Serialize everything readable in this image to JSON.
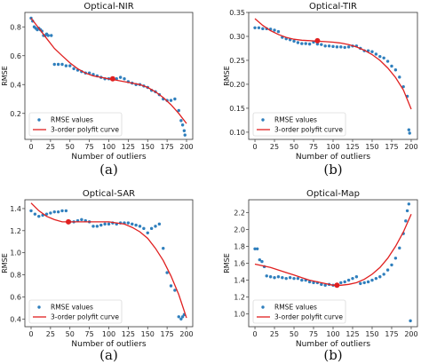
{
  "chart_data": [
    {
      "type": "scatter",
      "title": "Optical-NIR",
      "xlabel": "Number of outliers",
      "ylabel": "RMSE",
      "caption": "(a)",
      "xlim": [
        -8,
        208
      ],
      "ylim": [
        0.02,
        0.9
      ],
      "xticks": [
        0,
        25,
        50,
        75,
        100,
        125,
        150,
        175,
        200
      ],
      "yticks": [
        0.2,
        0.4,
        0.6,
        0.8
      ],
      "ytick_labels": [
        "0.2",
        "0.4",
        "0.6",
        "0.8"
      ],
      "legend": {
        "placement": "lower-left",
        "entries": [
          "RMSE values",
          "3-order polyfit curve"
        ]
      },
      "colors": {
        "points": "#2f7fbd",
        "curve": "#e02020",
        "marker": "#e02020"
      },
      "series": [
        {
          "name": "RMSE values",
          "kind": "scatter",
          "x": [
            0,
            2,
            4,
            6,
            8,
            10,
            12,
            14,
            16,
            18,
            20,
            22,
            26,
            30,
            35,
            40,
            45,
            50,
            55,
            60,
            65,
            70,
            75,
            80,
            85,
            90,
            95,
            100,
            105,
            110,
            115,
            120,
            125,
            130,
            135,
            140,
            145,
            150,
            155,
            160,
            165,
            170,
            175,
            180,
            185,
            190,
            193,
            195,
            197,
            198
          ],
          "y": [
            0.86,
            0.84,
            0.8,
            0.79,
            0.78,
            0.79,
            0.78,
            0.77,
            0.74,
            0.74,
            0.75,
            0.74,
            0.74,
            0.54,
            0.54,
            0.54,
            0.53,
            0.53,
            0.51,
            0.5,
            0.49,
            0.48,
            0.48,
            0.47,
            0.46,
            0.45,
            0.44,
            0.44,
            0.44,
            0.44,
            0.45,
            0.44,
            0.42,
            0.41,
            0.4,
            0.4,
            0.39,
            0.38,
            0.36,
            0.35,
            0.33,
            0.3,
            0.29,
            0.29,
            0.3,
            0.22,
            0.15,
            0.12,
            0.08,
            0.05
          ]
        },
        {
          "name": "3-order polyfit curve",
          "kind": "line",
          "x": [
            0,
            10,
            20,
            30,
            40,
            50,
            60,
            70,
            80,
            90,
            100,
            110,
            120,
            130,
            140,
            150,
            160,
            170,
            180,
            190,
            200
          ],
          "y": [
            0.86,
            0.79,
            0.72,
            0.65,
            0.6,
            0.55,
            0.51,
            0.48,
            0.46,
            0.45,
            0.44,
            0.43,
            0.42,
            0.41,
            0.4,
            0.38,
            0.35,
            0.31,
            0.26,
            0.2,
            0.13
          ]
        }
      ],
      "highlight": {
        "x": 105,
        "y": 0.44
      }
    },
    {
      "type": "scatter",
      "title": "Optical-TIR",
      "xlabel": "Number of outliers",
      "ylabel": "RMSE",
      "caption": "(b)",
      "xlim": [
        -8,
        208
      ],
      "ylim": [
        0.085,
        0.35
      ],
      "xticks": [
        0,
        25,
        50,
        75,
        100,
        125,
        150,
        175,
        200
      ],
      "yticks": [
        0.1,
        0.15,
        0.2,
        0.25,
        0.3,
        0.35
      ],
      "ytick_labels": [
        "0.10",
        "0.15",
        "0.20",
        "0.25",
        "0.30",
        "0.35"
      ],
      "legend": {
        "placement": "lower-left",
        "entries": [
          "RMSE values",
          "3-order polyfit curve"
        ]
      },
      "colors": {
        "points": "#2f7fbd",
        "curve": "#e02020",
        "marker": "#e02020"
      },
      "series": [
        {
          "name": "RMSE values",
          "kind": "scatter",
          "x": [
            0,
            5,
            10,
            15,
            20,
            25,
            30,
            35,
            40,
            45,
            50,
            55,
            60,
            65,
            70,
            75,
            80,
            85,
            90,
            95,
            100,
            105,
            110,
            115,
            120,
            125,
            130,
            135,
            140,
            145,
            150,
            155,
            160,
            165,
            170,
            175,
            180,
            185,
            190,
            195,
            197,
            198
          ],
          "y": [
            0.318,
            0.318,
            0.316,
            0.316,
            0.315,
            0.313,
            0.31,
            0.298,
            0.295,
            0.293,
            0.29,
            0.287,
            0.285,
            0.285,
            0.284,
            0.288,
            0.284,
            0.283,
            0.28,
            0.28,
            0.279,
            0.278,
            0.278,
            0.277,
            0.278,
            0.28,
            0.28,
            0.275,
            0.27,
            0.27,
            0.268,
            0.263,
            0.258,
            0.255,
            0.248,
            0.238,
            0.23,
            0.215,
            0.195,
            0.175,
            0.105,
            0.098
          ]
        },
        {
          "name": "3-order polyfit curve",
          "kind": "line",
          "x": [
            0,
            10,
            20,
            30,
            40,
            50,
            60,
            70,
            80,
            90,
            100,
            110,
            120,
            130,
            140,
            150,
            160,
            170,
            180,
            190,
            200
          ],
          "y": [
            0.337,
            0.323,
            0.312,
            0.304,
            0.298,
            0.294,
            0.292,
            0.291,
            0.29,
            0.289,
            0.288,
            0.286,
            0.283,
            0.278,
            0.271,
            0.262,
            0.25,
            0.234,
            0.214,
            0.188,
            0.148
          ]
        }
      ],
      "highlight": {
        "x": 80,
        "y": 0.291
      }
    },
    {
      "type": "scatter",
      "title": "Optical-SAR",
      "xlabel": "Number of outliers",
      "ylabel": "RMSE",
      "caption": "(a)",
      "xlim": [
        -8,
        208
      ],
      "ylim": [
        0.33,
        1.48
      ],
      "xticks": [
        0,
        25,
        50,
        75,
        100,
        125,
        150,
        175,
        200
      ],
      "yticks": [
        0.4,
        0.6,
        0.8,
        1.0,
        1.2,
        1.4
      ],
      "ytick_labels": [
        "0.4",
        "0.6",
        "0.8",
        "1.0",
        "1.2",
        "1.4"
      ],
      "legend": {
        "placement": "lower-left",
        "entries": [
          "RMSE values",
          "3-order polyfit curve"
        ]
      },
      "colors": {
        "points": "#2f7fbd",
        "curve": "#e02020",
        "marker": "#e02020"
      },
      "series": [
        {
          "name": "RMSE values",
          "kind": "scatter",
          "x": [
            0,
            5,
            10,
            15,
            20,
            25,
            30,
            35,
            40,
            45,
            50,
            55,
            60,
            65,
            70,
            75,
            80,
            85,
            90,
            95,
            100,
            105,
            110,
            115,
            120,
            125,
            130,
            135,
            140,
            145,
            150,
            155,
            160,
            165,
            170,
            175,
            180,
            185,
            190,
            193,
            195,
            197
          ],
          "y": [
            1.38,
            1.35,
            1.33,
            1.34,
            1.35,
            1.36,
            1.37,
            1.37,
            1.38,
            1.38,
            1.28,
            1.28,
            1.29,
            1.3,
            1.29,
            1.28,
            1.24,
            1.24,
            1.25,
            1.26,
            1.26,
            1.27,
            1.26,
            1.27,
            1.27,
            1.27,
            1.26,
            1.25,
            1.24,
            1.22,
            1.18,
            1.22,
            1.24,
            1.26,
            1.04,
            0.82,
            0.7,
            0.66,
            0.42,
            0.4,
            0.42,
            0.44
          ]
        },
        {
          "name": "3-order polyfit curve",
          "kind": "line",
          "x": [
            0,
            10,
            20,
            30,
            40,
            50,
            60,
            70,
            80,
            90,
            100,
            110,
            120,
            130,
            140,
            150,
            160,
            170,
            180,
            190,
            200
          ],
          "y": [
            1.45,
            1.38,
            1.33,
            1.3,
            1.28,
            1.28,
            1.28,
            1.28,
            1.28,
            1.28,
            1.28,
            1.27,
            1.26,
            1.23,
            1.19,
            1.13,
            1.04,
            0.93,
            0.79,
            0.62,
            0.41
          ]
        }
      ],
      "highlight": {
        "x": 48,
        "y": 1.28
      }
    },
    {
      "type": "scatter",
      "title": "Optical-Map",
      "xlabel": "Number of outliers",
      "ylabel": "RMSE",
      "caption": "(b)",
      "xlim": [
        -8,
        208
      ],
      "ylim": [
        0.85,
        2.35
      ],
      "xticks": [
        0,
        25,
        50,
        75,
        100,
        125,
        150,
        175,
        200
      ],
      "yticks": [
        1.0,
        1.2,
        1.4,
        1.6,
        1.8,
        2.0,
        2.2
      ],
      "ytick_labels": [
        "1.0",
        "1.2",
        "1.4",
        "1.6",
        "1.8",
        "2.0",
        "2.2"
      ],
      "legend": {
        "placement": "lower-left",
        "entries": [
          "RMSE values",
          "3-order polyfit curve"
        ]
      },
      "colors": {
        "points": "#2f7fbd",
        "curve": "#e02020",
        "marker": "#e02020"
      },
      "series": [
        {
          "name": "RMSE values",
          "kind": "scatter",
          "x": [
            0,
            3,
            6,
            9,
            12,
            15,
            20,
            25,
            30,
            35,
            40,
            45,
            50,
            55,
            60,
            65,
            70,
            75,
            80,
            85,
            90,
            95,
            100,
            105,
            110,
            115,
            120,
            125,
            130,
            135,
            140,
            145,
            150,
            155,
            160,
            165,
            170,
            175,
            180,
            185,
            190,
            193,
            195,
            197,
            199
          ],
          "y": [
            1.77,
            1.77,
            1.64,
            1.62,
            1.56,
            1.45,
            1.44,
            1.43,
            1.44,
            1.43,
            1.42,
            1.43,
            1.42,
            1.42,
            1.4,
            1.4,
            1.38,
            1.37,
            1.37,
            1.35,
            1.34,
            1.35,
            1.34,
            1.35,
            1.37,
            1.38,
            1.4,
            1.42,
            1.44,
            1.36,
            1.37,
            1.38,
            1.4,
            1.42,
            1.44,
            1.47,
            1.52,
            1.58,
            1.66,
            1.78,
            1.95,
            2.1,
            2.22,
            2.3,
            0.92
          ]
        },
        {
          "name": "3-order polyfit curve",
          "kind": "line",
          "x": [
            0,
            10,
            20,
            30,
            40,
            50,
            60,
            70,
            80,
            90,
            100,
            110,
            120,
            130,
            140,
            150,
            160,
            170,
            180,
            190,
            200
          ],
          "y": [
            1.59,
            1.57,
            1.55,
            1.52,
            1.49,
            1.46,
            1.43,
            1.4,
            1.38,
            1.36,
            1.34,
            1.34,
            1.35,
            1.37,
            1.41,
            1.47,
            1.55,
            1.66,
            1.8,
            1.97,
            2.18
          ]
        }
      ],
      "highlight": {
        "x": 105,
        "y": 1.34
      }
    }
  ]
}
